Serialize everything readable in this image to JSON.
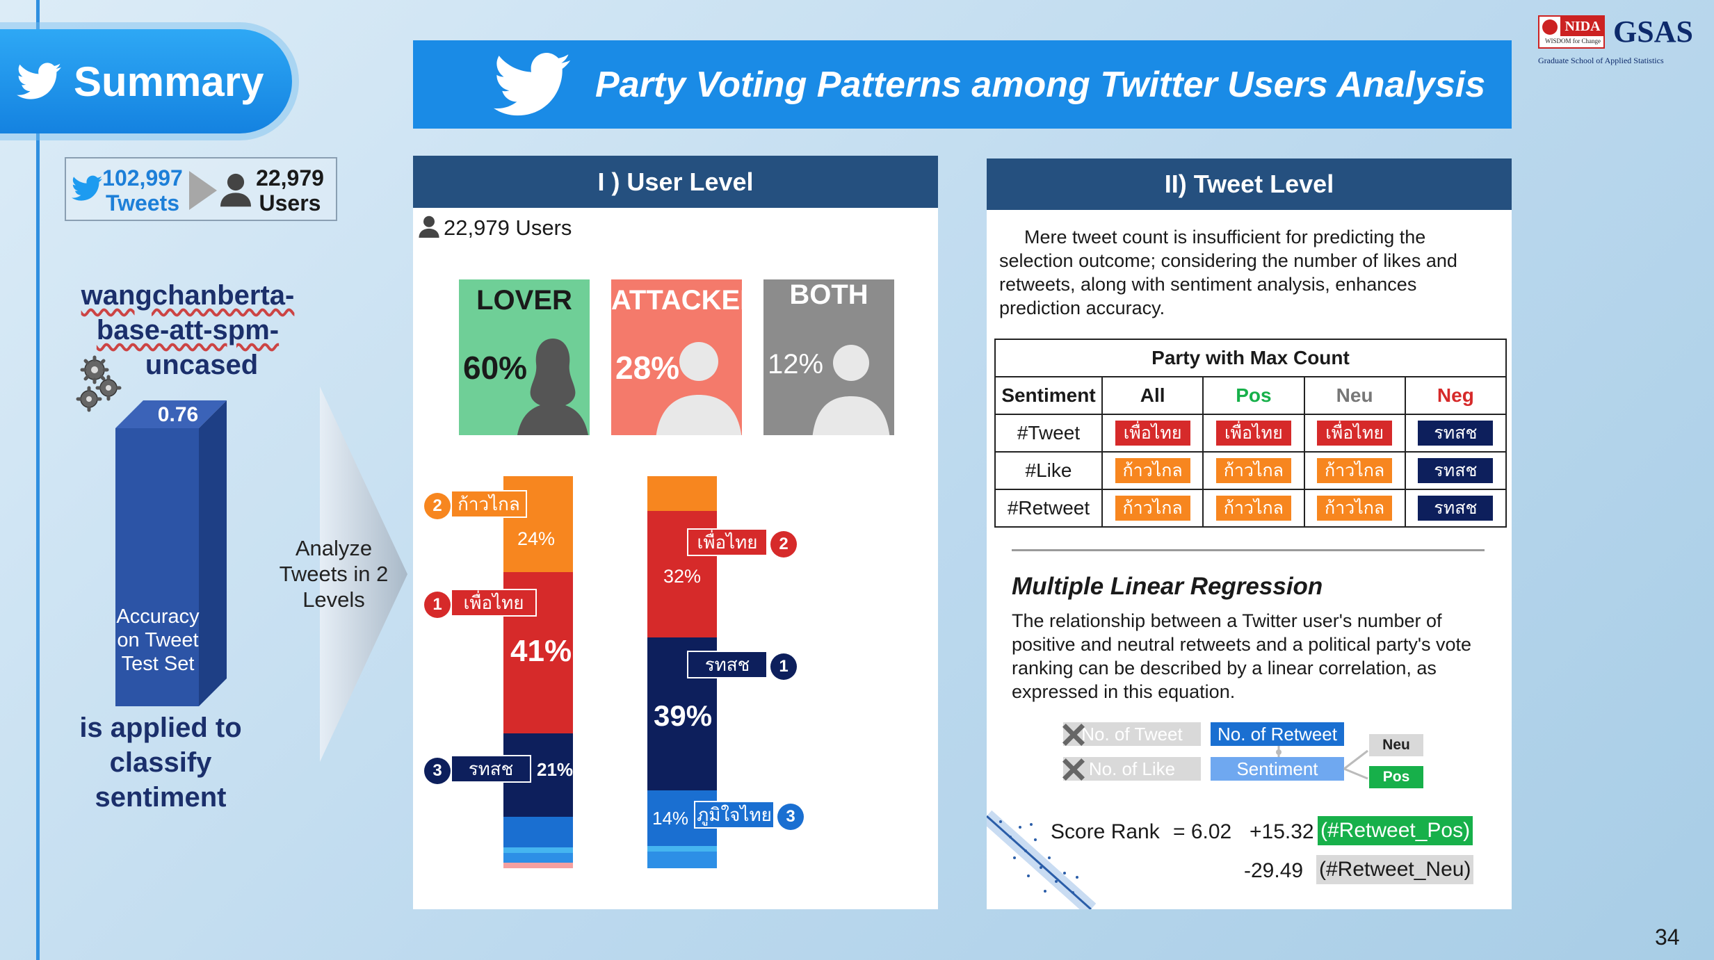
{
  "summary": {
    "label": "Summary"
  },
  "counts": {
    "tweets_num": "102,997",
    "tweets_label": "Tweets",
    "users_num": "22,979",
    "users_label": "Users"
  },
  "model": {
    "line1": "wangchanberta-",
    "line2": "base-att-spm-",
    "line3": "uncased"
  },
  "accuracy": {
    "value": "0.76",
    "line1": "Accuracy",
    "line2": "on Tweet",
    "line3": "Test Set",
    "fraction": 0.76
  },
  "applied": {
    "line1": "is applied to",
    "line2": "classify",
    "line3": "sentiment"
  },
  "analyze": {
    "line1": "Analyze",
    "line2": "Tweets in 2",
    "line3": "Levels"
  },
  "title": "Party Voting Patterns among Twitter Users Analysis",
  "logo": {
    "nida": "NIDA",
    "nida_sub": "WISDOM for Change",
    "gsas": "GSAS",
    "gsas_sub": "Graduate School of Applied Statistics"
  },
  "user_level": {
    "heading": "I ) User Level",
    "users": "22,979 Users",
    "cards": [
      {
        "label": "LOVER",
        "pct": "60%",
        "color": "#6fcf97"
      },
      {
        "label": "ATTACKER",
        "pct": "28%",
        "color": "#f47a6b"
      },
      {
        "label": "BOTH",
        "pct": "12%",
        "color": "#8c8c8c"
      }
    ],
    "bar1": {
      "tags": [
        {
          "rank": "2",
          "party": "ก้าวไกล",
          "pct": "24%"
        },
        {
          "rank": "1",
          "party": "เพื่อไทย",
          "pct": "41%"
        },
        {
          "rank": "3",
          "party": "รทสช",
          "pct": "21%"
        }
      ]
    },
    "bar2": {
      "tags": [
        {
          "rank": "2",
          "party": "เพื่อไทย",
          "pct": "32%"
        },
        {
          "rank": "1",
          "party": "รทสช",
          "pct": "39%"
        },
        {
          "rank": "3",
          "party": "ภูมิใจไทย",
          "pct": "14%"
        }
      ]
    }
  },
  "tweet_level": {
    "heading": "II) Tweet Level",
    "intro": "Mere tweet count is insufficient for predicting the selection outcome; considering the number of likes and retweets, along with sentiment analysis, enhances prediction accuracy.",
    "table": {
      "caption": "Party with Max Count",
      "headers": [
        "Sentiment",
        "All",
        "Pos",
        "Neu",
        "Neg"
      ],
      "rows": [
        {
          "label": "#Tweet",
          "cells": [
            "เพื่อไทย",
            "เพื่อไทย",
            "เพื่อไทย",
            "รทสช"
          ]
        },
        {
          "label": "#Like",
          "cells": [
            "ก้าวไกล",
            "ก้าวไกล",
            "ก้าวไกล",
            "รทสช"
          ]
        },
        {
          "label": "#Retweet",
          "cells": [
            "ก้าวไกล",
            "ก้าวไกล",
            "ก้าวไกล",
            "รทสช"
          ]
        }
      ]
    },
    "mlr_title": "Multiple Linear Regression",
    "mlr_text": "The relationship between a Twitter user's number of positive and neutral retweets and a political party's vote ranking can be described by a linear correlation, as expressed in this equation.",
    "diagram": {
      "x_tweet": "No. of Tweet",
      "x_like": "No. of Like",
      "retweet": "No. of Retweet",
      "sentiment": "Sentiment",
      "neu": "Neu",
      "pos": "Pos"
    },
    "equation": {
      "lhs": "Score Rank",
      "eq1": "= 6.02",
      "t1": "+15.32",
      "v1": "(#Retweet_Pos)",
      "t2": "-29.49",
      "v2": "(#Retweet_Neu)"
    }
  },
  "page_number": "34",
  "colors": {
    "accent": "#1a8be6",
    "header": "#25507f",
    "red": "#d62a2a",
    "orange": "#f7861f",
    "navy": "#0d1f5c",
    "blue": "#1a6fd1"
  }
}
